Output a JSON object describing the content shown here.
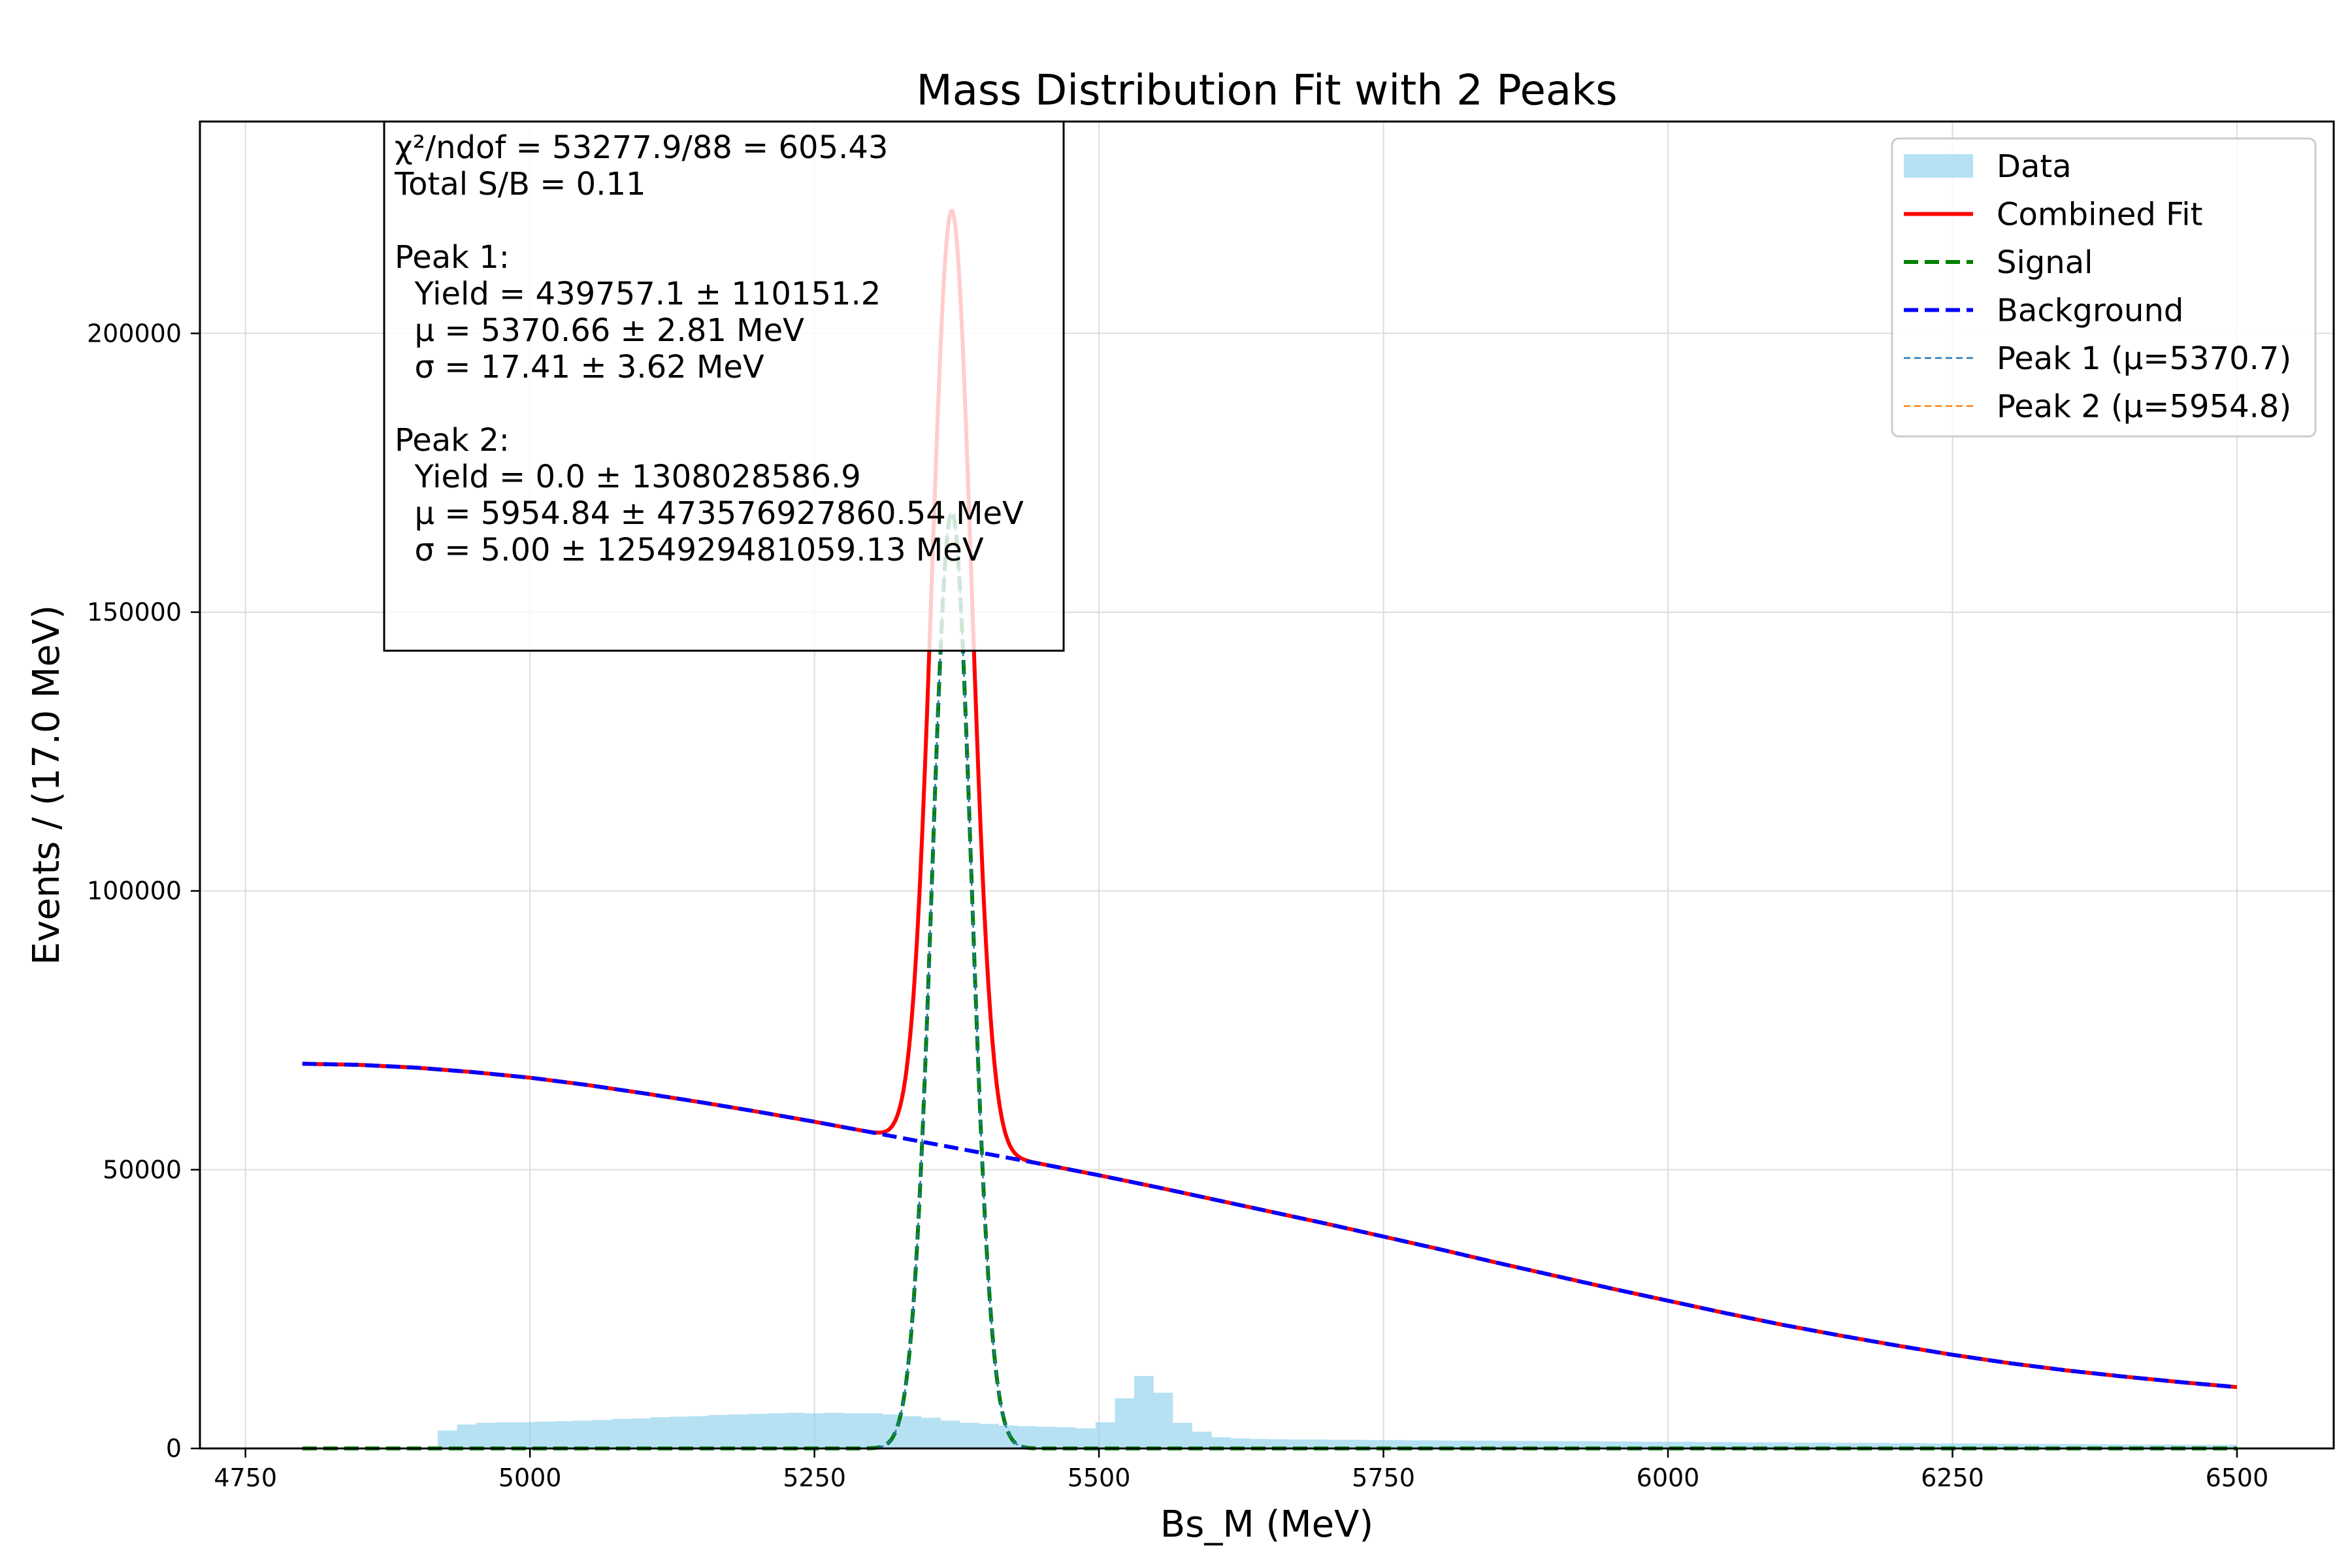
{
  "chart_data": {
    "type": "histogram-fit",
    "title": "Mass Distribution Fit with 2 Peaks",
    "xlabel": "Bs_M (MeV)",
    "ylabel": "Events / (17.0 MeV)",
    "xlim": [
      4710,
      6585
    ],
    "ylim": [
      0,
      238000
    ],
    "x_ticks": [
      4750,
      5000,
      5250,
      5500,
      5750,
      6000,
      6250,
      6500
    ],
    "y_ticks": [
      0,
      50000,
      100000,
      150000,
      200000
    ],
    "grid": true,
    "legend_placement": "top-right",
    "colors": {
      "data": "#87CEEB",
      "combined": "#ff0000",
      "signal": "#008000",
      "background": "#0000ff",
      "peak1": "#1f77b4",
      "peak2": "#ff7f0e"
    },
    "legend": [
      {
        "label": "Data",
        "style": "patch",
        "color": "#87CEEB"
      },
      {
        "label": "Combined Fit",
        "style": "solid",
        "color": "#ff0000"
      },
      {
        "label": "Signal",
        "style": "dashed-thick",
        "color": "#008000"
      },
      {
        "label": "Background",
        "style": "dashed-thick",
        "color": "#0000ff"
      },
      {
        "label": "Peak 1 (μ=5370.7)",
        "style": "dashed-thin",
        "color": "#1f77b4"
      },
      {
        "label": "Peak 2 (μ=5954.8)",
        "style": "dashed-thin",
        "color": "#ff7f0e"
      }
    ],
    "stats_box": [
      "χ²/ndof = 53277.9/88 = 605.43",
      "Total S/B = 0.11",
      "",
      "Peak 1:",
      "  Yield = 439757.1 ± 110151.2",
      "  μ = 5370.66 ± 2.81 MeV",
      "  σ = 17.41 ± 3.62 MeV",
      "",
      "Peak 2:",
      "  Yield = 0.0 ± 1308028586.9",
      "  μ = 5954.84 ± 473576927860.54 MeV",
      "  σ = 5.00 ± 1254929481059.13 MeV"
    ],
    "histogram": {
      "bin_width": 17,
      "x_start": 4800,
      "x_end": 6500,
      "values": [
        0,
        0,
        0,
        0,
        0,
        0,
        0,
        3200,
        4300,
        4600,
        4700,
        4700,
        4800,
        4900,
        5000,
        5100,
        5300,
        5400,
        5600,
        5700,
        5800,
        6000,
        6100,
        6200,
        6300,
        6400,
        6300,
        6400,
        6300,
        6300,
        6100,
        5800,
        5500,
        5000,
        4600,
        4400,
        4100,
        4000,
        3900,
        3800,
        3600,
        4700,
        9000,
        13000,
        10000,
        4600,
        3000,
        2000,
        1800,
        1700,
        1650,
        1600,
        1600,
        1550,
        1550,
        1500,
        1500,
        1450,
        1450,
        1400,
        1400,
        1400,
        1350,
        1350,
        1300,
        1300,
        1300,
        1250,
        1250,
        1200,
        1200,
        1200,
        1150,
        1150,
        1100,
        1100,
        1100,
        1050,
        1050,
        1000,
        1000,
        1000,
        950,
        950,
        900,
        900,
        900,
        850,
        850,
        800,
        800,
        800,
        750,
        750,
        700,
        700,
        700,
        650,
        650,
        650
      ]
    },
    "background_curve": {
      "x": [
        4800,
        4850,
        4900,
        4950,
        5000,
        5050,
        5100,
        5150,
        5200,
        5250,
        5300,
        5350,
        5400,
        5450,
        5500,
        5550,
        5600,
        5650,
        5700,
        5750,
        5800,
        5850,
        5900,
        5950,
        6000,
        6050,
        6100,
        6150,
        6200,
        6250,
        6300,
        6350,
        6400,
        6450,
        6500
      ],
      "y": [
        69000,
        68800,
        68300,
        67500,
        66500,
        65200,
        63700,
        62100,
        60400,
        58600,
        56700,
        54800,
        52900,
        51000,
        49000,
        46900,
        44700,
        42500,
        40300,
        38000,
        35700,
        33300,
        31000,
        28700,
        26500,
        24300,
        22200,
        20300,
        18500,
        16800,
        15300,
        14000,
        12900,
        11900,
        11000
      ]
    },
    "signal_peaks": [
      {
        "name": "Peak 1 (μ=5370.7)",
        "mean": 5370.66,
        "sigma": 17.41,
        "amplitude": 168000
      },
      {
        "name": "Peak 2 (μ=5954.8)",
        "mean": 5954.84,
        "sigma": 5.0,
        "amplitude": 0
      }
    ]
  }
}
